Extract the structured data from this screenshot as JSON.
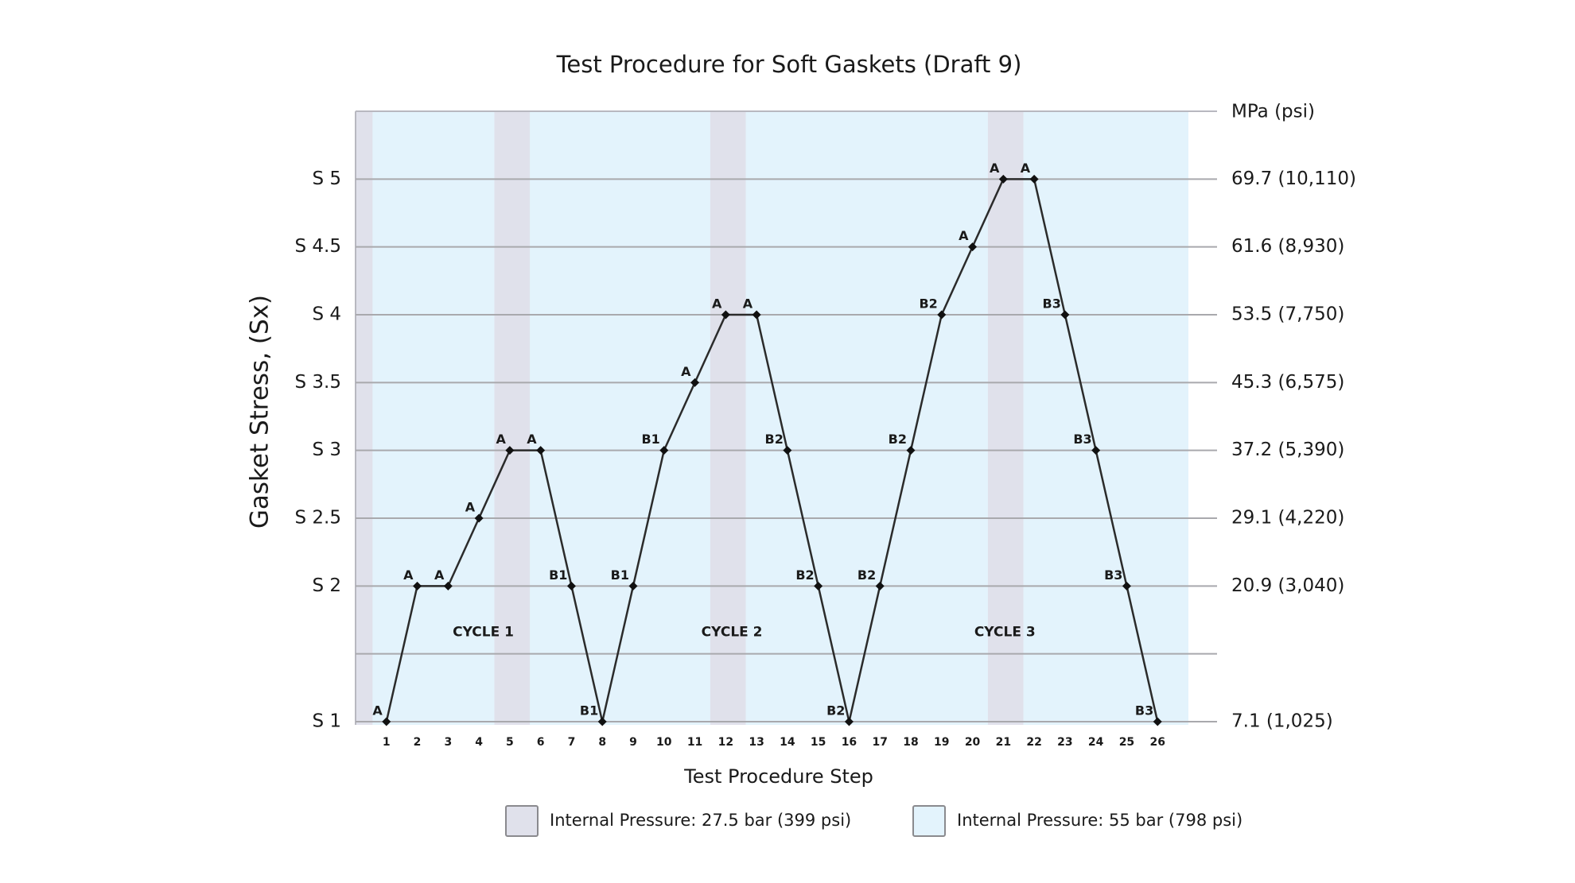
{
  "chart_data": {
    "type": "line",
    "title": "Test Procedure for Soft Gaskets (Draft 9)",
    "x_label": "Test Procedure Step",
    "y_label": "Gasket Stress, (Sx)",
    "y2_label": "MPa (psi)",
    "x": [
      1,
      2,
      3,
      4,
      5,
      6,
      7,
      8,
      9,
      10,
      11,
      12,
      13,
      14,
      15,
      16,
      17,
      18,
      19,
      20,
      21,
      22,
      23,
      24,
      25,
      26
    ],
    "series": [
      {
        "color": "#2b2b2b",
        "values": [
          1,
          2,
          2,
          2.5,
          3,
          3,
          2,
          1,
          2,
          3,
          3.5,
          4,
          4,
          3,
          2,
          1,
          2,
          3,
          4,
          4.5,
          5,
          5,
          4,
          3,
          2,
          1
        ],
        "point_labels": [
          "A",
          "A",
          "A",
          "A",
          "A",
          "A",
          "B1",
          "B1",
          "B1",
          "B1",
          "A",
          "A",
          "A",
          "B2",
          "B2",
          "B2",
          "B2",
          "B2",
          "B2",
          "A",
          "A",
          "A",
          "B3",
          "B3",
          "B3",
          "B3"
        ]
      }
    ],
    "xlim": [
      0,
      27
    ],
    "xticks": [
      1,
      2,
      3,
      4,
      5,
      6,
      7,
      8,
      9,
      10,
      11,
      12,
      13,
      14,
      15,
      16,
      17,
      18,
      19,
      20,
      21,
      22,
      23,
      24,
      25,
      26
    ],
    "ylim": [
      1,
      5.5
    ],
    "yticks": [
      {
        "value": 1,
        "label": "S 1"
      },
      {
        "value": 1.5,
        "label": null
      },
      {
        "value": 2,
        "label": "S 2"
      },
      {
        "value": 2.5,
        "label": "S 2.5"
      },
      {
        "value": 3,
        "label": "S 3"
      },
      {
        "value": 3.5,
        "label": "S 3.5"
      },
      {
        "value": 4,
        "label": "S 4"
      },
      {
        "value": 4.5,
        "label": "S 4.5"
      },
      {
        "value": 5,
        "label": "S 5"
      }
    ],
    "y2lim": [
      1,
      5.5
    ],
    "y2ticks": [
      {
        "value": 1,
        "label": "7.1 (1,025)"
      },
      {
        "value": 2,
        "label": "20.9 (3,040)"
      },
      {
        "value": 2.5,
        "label": "29.1 (4,220)"
      },
      {
        "value": 3,
        "label": "37.2 (5,390)"
      },
      {
        "value": 3.5,
        "label": "45.3 (6,575)"
      },
      {
        "value": 4,
        "label": "53.5 (7,750)"
      },
      {
        "value": 4.5,
        "label": "61.6 (8,930)"
      },
      {
        "value": 5,
        "label": "69.7 (10,110)"
      }
    ],
    "grid": true,
    "annotations": [
      "CYCLE 1",
      "CYCLE 2",
      "CYCLE 3"
    ],
    "regions": [
      {
        "name": "Internal Pressure: 55 bar (798 psi)",
        "color": "#e3f3fc",
        "spans": [
          [
            0,
            27
          ]
        ]
      },
      {
        "name": "Internal Pressure: 27.5 bar (399 psi)",
        "color": "#e0e1eb",
        "spans": [
          [
            0,
            0.55
          ],
          [
            4.5,
            5.65
          ],
          [
            11.5,
            12.65
          ],
          [
            20.5,
            21.65
          ]
        ]
      }
    ],
    "legend_order": [
      1,
      0
    ]
  }
}
